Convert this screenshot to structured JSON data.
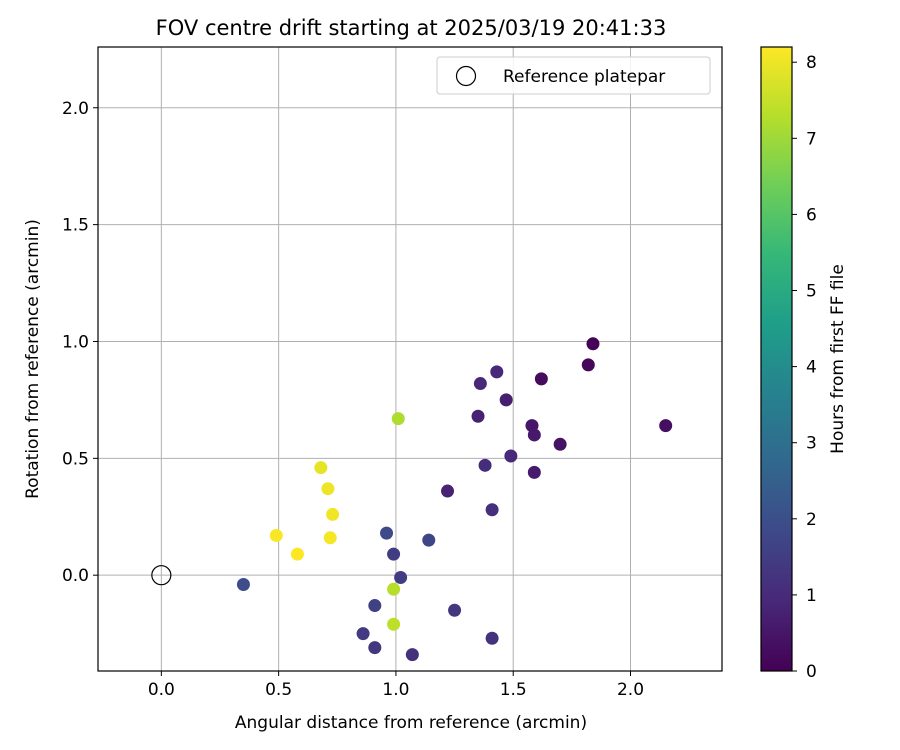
{
  "chart_data": {
    "type": "scatter",
    "title": "FOV centre drift starting at 2025/03/19 20:41:33",
    "xlabel": "Angular distance from reference (arcmin)",
    "ylabel": "Rotation from reference (arcmin)",
    "xlim": [
      -0.27,
      2.39
    ],
    "ylim": [
      -0.41,
      2.26
    ],
    "xticks": [
      0.0,
      0.5,
      1.0,
      1.5,
      2.0
    ],
    "yticks": [
      0.0,
      0.5,
      1.0,
      1.5,
      2.0
    ],
    "grid": true,
    "legend": {
      "placement": "top-right",
      "entries": [
        "Reference platepar"
      ]
    },
    "reference_point": {
      "x": 0.0,
      "y": 0.0,
      "marker": "open-circle"
    },
    "colorbar": {
      "label": "Hours from first FF file",
      "colormap": "viridis",
      "range": [
        0,
        8.2
      ],
      "ticks": [
        0,
        1,
        2,
        3,
        4,
        5,
        6,
        7,
        8
      ]
    },
    "colormap_stops": [
      "#440154",
      "#482878",
      "#3e4989",
      "#31688e",
      "#26828e",
      "#1f9e89",
      "#35b779",
      "#6ece58",
      "#b5de2b",
      "#fde725"
    ],
    "points": [
      {
        "x": 1.84,
        "y": 0.99,
        "c": 0.05
      },
      {
        "x": 1.82,
        "y": 0.9,
        "c": 0.15
      },
      {
        "x": 1.62,
        "y": 0.84,
        "c": 0.25
      },
      {
        "x": 2.15,
        "y": 0.64,
        "c": 0.3
      },
      {
        "x": 1.7,
        "y": 0.56,
        "c": 0.4
      },
      {
        "x": 1.58,
        "y": 0.64,
        "c": 0.5
      },
      {
        "x": 1.59,
        "y": 0.6,
        "c": 0.55
      },
      {
        "x": 1.59,
        "y": 0.44,
        "c": 0.6
      },
      {
        "x": 1.47,
        "y": 0.75,
        "c": 0.7
      },
      {
        "x": 1.35,
        "y": 0.68,
        "c": 0.75
      },
      {
        "x": 1.22,
        "y": 0.36,
        "c": 0.8
      },
      {
        "x": 1.43,
        "y": 0.87,
        "c": 0.9
      },
      {
        "x": 1.36,
        "y": 0.82,
        "c": 0.95
      },
      {
        "x": 1.49,
        "y": 0.51,
        "c": 1.0
      },
      {
        "x": 1.38,
        "y": 0.47,
        "c": 1.05
      },
      {
        "x": 1.41,
        "y": 0.28,
        "c": 1.1
      },
      {
        "x": 1.07,
        "y": -0.34,
        "c": 1.15
      },
      {
        "x": 1.41,
        "y": -0.27,
        "c": 1.2
      },
      {
        "x": 1.25,
        "y": -0.15,
        "c": 1.3
      },
      {
        "x": 0.91,
        "y": -0.31,
        "c": 1.35
      },
      {
        "x": 0.86,
        "y": -0.25,
        "c": 1.4
      },
      {
        "x": 0.99,
        "y": 0.09,
        "c": 1.45
      },
      {
        "x": 1.02,
        "y": -0.01,
        "c": 1.5
      },
      {
        "x": 0.91,
        "y": -0.13,
        "c": 1.6
      },
      {
        "x": 1.14,
        "y": 0.15,
        "c": 1.75
      },
      {
        "x": 0.96,
        "y": 0.18,
        "c": 1.85
      },
      {
        "x": 0.35,
        "y": -0.04,
        "c": 1.95
      },
      {
        "x": 1.01,
        "y": 0.67,
        "c": 7.2
      },
      {
        "x": 0.99,
        "y": -0.06,
        "c": 7.3
      },
      {
        "x": 0.99,
        "y": -0.21,
        "c": 7.4
      },
      {
        "x": 0.68,
        "y": 0.46,
        "c": 7.9
      },
      {
        "x": 0.71,
        "y": 0.37,
        "c": 8.0
      },
      {
        "x": 0.73,
        "y": 0.26,
        "c": 8.05
      },
      {
        "x": 0.72,
        "y": 0.16,
        "c": 8.1
      },
      {
        "x": 0.49,
        "y": 0.17,
        "c": 8.15
      },
      {
        "x": 0.58,
        "y": 0.09,
        "c": 8.2
      }
    ]
  }
}
